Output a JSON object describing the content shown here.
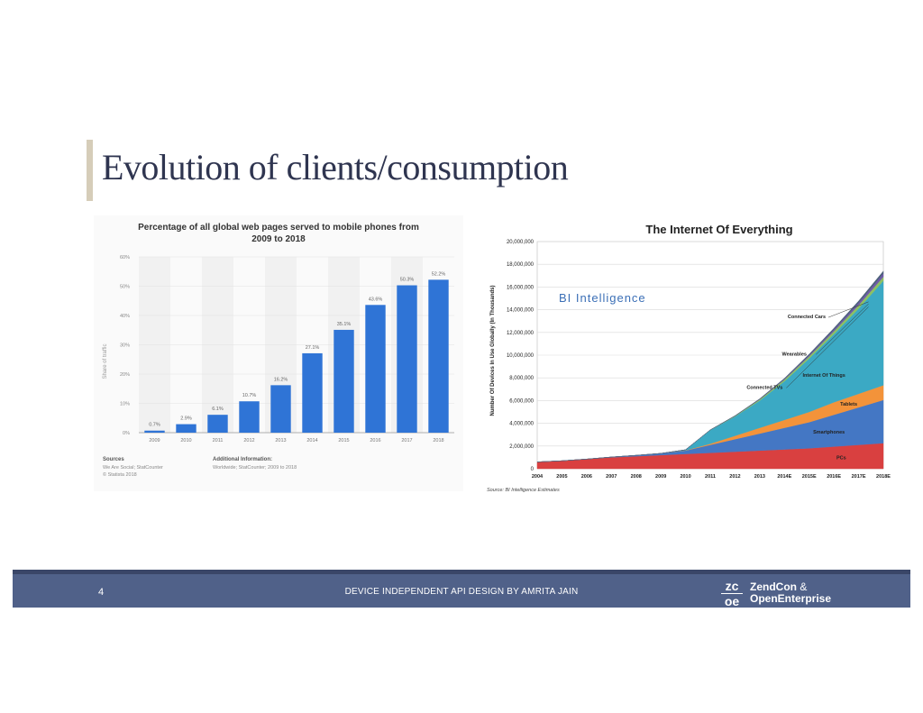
{
  "slide": {
    "title": "Evolution of clients/consumption",
    "footer_number": "4",
    "footer_caption": "DEVICE INDEPENDENT API DESIGN BY AMRITA JAIN",
    "logo_mark_line1": "zc",
    "logo_mark_line2": "oe",
    "logo_line1": "ZendCon",
    "logo_amp": "&",
    "logo_line2": "OpenEnterprise"
  },
  "colors": {
    "footer": "#506189",
    "bar": "#2f74d6",
    "title": "#2f3550"
  },
  "chart_data": [
    {
      "type": "bar",
      "title": "Percentage of all global web pages served to mobile phones from 2009 to 2018",
      "title_line1": "Percentage of all global web pages served to mobile phones from",
      "title_line2": "2009 to 2018",
      "ylabel": "Share of traffic",
      "xlabel": "",
      "ylim": [
        0,
        60
      ],
      "yticks": [
        0,
        10,
        20,
        30,
        40,
        50,
        60
      ],
      "ytick_labels": [
        "0%",
        "10%",
        "20%",
        "30%",
        "40%",
        "50%",
        "60%"
      ],
      "categories": [
        "2009",
        "2010",
        "2011",
        "2012",
        "2013",
        "2014",
        "2015",
        "2016",
        "2017",
        "2018"
      ],
      "values": [
        0.7,
        2.9,
        6.1,
        10.7,
        16.2,
        27.1,
        35.1,
        43.6,
        50.3,
        52.2
      ],
      "value_labels": [
        "0.7%",
        "2.9%",
        "6.1%",
        "10.7%",
        "16.2%",
        "27.1%",
        "35.1%",
        "43.6%",
        "50.3%",
        "52.2%"
      ],
      "sources_heading": "Sources",
      "sources_line1": "We Are Social; StatCounter",
      "sources_line2": "© Statista 2018",
      "info_heading": "Additional Information:",
      "info_line1": "Worldwide; StatCounter; 2009 to 2018"
    },
    {
      "type": "area",
      "title": "The Internet Of Everything",
      "watermark": "BI Intelligence",
      "ylabel": "Number Of Devices In Use Globally (In Thousands)",
      "ylim": [
        0,
        20000000
      ],
      "yticks": [
        0,
        2000000,
        4000000,
        6000000,
        8000000,
        10000000,
        12000000,
        14000000,
        16000000,
        18000000,
        20000000
      ],
      "ytick_labels": [
        "0",
        "2,000,000",
        "4,000,000",
        "6,000,000",
        "8,000,000",
        "10,000,000",
        "12,000,000",
        "14,000,000",
        "16,000,000",
        "18,000,000",
        "20,000,000"
      ],
      "categories": [
        "2004",
        "2005",
        "2006",
        "2007",
        "2008",
        "2009",
        "2010",
        "2011",
        "2012",
        "2013",
        "2014E",
        "2015E",
        "2016E",
        "2017E",
        "2018E"
      ],
      "series": [
        {
          "name": "PCs",
          "color": "#d94040",
          "values": [
            600000,
            700000,
            850000,
            1000000,
            1100000,
            1200000,
            1300000,
            1400000,
            1500000,
            1600000,
            1700000,
            1800000,
            1950000,
            2100000,
            2250000
          ]
        },
        {
          "name": "Smartphones",
          "color": "#4477c4",
          "values": [
            0,
            0,
            0,
            30000,
            80000,
            150000,
            300000,
            700000,
            1100000,
            1500000,
            1900000,
            2300000,
            2800000,
            3300000,
            3800000
          ]
        },
        {
          "name": "Tablets",
          "color": "#f3933a",
          "values": [
            0,
            0,
            0,
            0,
            0,
            0,
            20000,
            100000,
            300000,
            500000,
            700000,
            900000,
            1100000,
            1200000,
            1300000
          ]
        },
        {
          "name": "Internet Of Things",
          "color": "#3ba9c4",
          "values": [
            0,
            0,
            0,
            0,
            0,
            0,
            50000,
            1200000,
            1700000,
            2400000,
            3400000,
            4700000,
            6000000,
            7500000,
            9200000
          ]
        },
        {
          "name": "Connected TVs",
          "color": "#8dc063",
          "values": [
            0,
            0,
            0,
            0,
            0,
            0,
            0,
            20000,
            50000,
            100000,
            150000,
            200000,
            250000,
            300000,
            350000
          ]
        },
        {
          "name": "Wearables",
          "color": "#6f5aa8",
          "values": [
            0,
            0,
            0,
            0,
            0,
            0,
            0,
            0,
            0,
            20000,
            50000,
            100000,
            150000,
            220000,
            300000
          ]
        },
        {
          "name": "Connected Cars",
          "color": "#4b5f7a",
          "values": [
            0,
            0,
            0,
            0,
            0,
            0,
            0,
            0,
            20000,
            40000,
            60000,
            90000,
            120000,
            150000,
            200000
          ]
        }
      ],
      "source_note": "Source: BI Intelligence Estimates"
    }
  ]
}
